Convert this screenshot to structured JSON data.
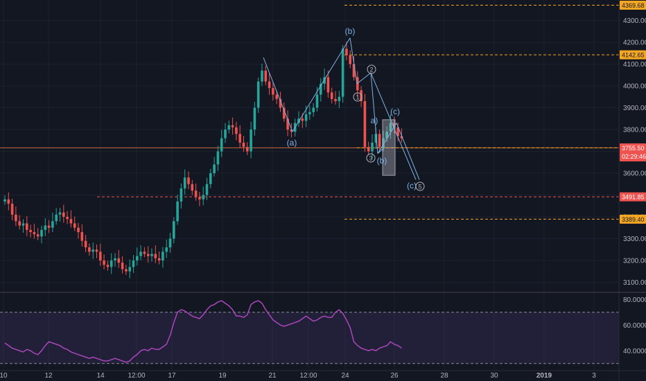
{
  "chart_data": [
    {
      "type": "candlestick",
      "title": "",
      "x_ticks": [
        "10",
        "12",
        "14",
        "12:00",
        "17",
        "19",
        "21",
        "12:00",
        "24",
        "26",
        "28",
        "30",
        "2019",
        "3"
      ],
      "y_ticks": [
        3100,
        3200,
        3300,
        3400,
        3500,
        3600,
        3700,
        3800,
        3900,
        4000,
        4100,
        4200,
        4300
      ],
      "y_tick_labels": [
        "3100.00",
        "3200.00",
        "3300.00",
        "3400.00",
        "3500.00",
        "3600.00",
        "3700.00",
        "3800.00",
        "3900.00",
        "4000.00",
        "4100.00",
        "4200.00",
        "4300.00"
      ],
      "ylim": [
        3050,
        4400
      ],
      "grid": true,
      "colors": {
        "up": "#26a69a",
        "down": "#ef5350",
        "wave": "#7fb2e5",
        "level_orange": "#f5a623",
        "level_red": "#ef5350"
      },
      "closes": [
        3480,
        3460,
        3410,
        3380,
        3360,
        3370,
        3340,
        3330,
        3320,
        3310,
        3340,
        3360,
        3350,
        3380,
        3410,
        3420,
        3400,
        3390,
        3370,
        3350,
        3330,
        3290,
        3260,
        3240,
        3250,
        3240,
        3200,
        3180,
        3170,
        3200,
        3210,
        3190,
        3160,
        3150,
        3170,
        3200,
        3220,
        3240,
        3230,
        3220,
        3230,
        3210,
        3200,
        3240,
        3260,
        3300,
        3380,
        3470,
        3530,
        3580,
        3550,
        3520,
        3490,
        3480,
        3500,
        3550,
        3600,
        3640,
        3700,
        3760,
        3800,
        3820,
        3810,
        3780,
        3740,
        3720,
        3700,
        3800,
        3900,
        4020,
        4070,
        4020,
        3990,
        3960,
        3940,
        3900,
        3850,
        3800,
        3790,
        3830,
        3850,
        3840,
        3870,
        3880,
        3900,
        3960,
        4010,
        4040,
        3970,
        3940,
        3930,
        3950,
        4170,
        4140,
        4100,
        4040,
        3980,
        3930,
        3720,
        3700,
        3740,
        3780,
        3720,
        3760,
        3790,
        3830,
        3810,
        3770,
        3760
      ],
      "start_open": 3470,
      "series": [
        {
          "name": "",
          "type": "line",
          "values": [
            46,
            44,
            42,
            41,
            40,
            39,
            41,
            40,
            38,
            37,
            40,
            44,
            47,
            46,
            45,
            44,
            42,
            41,
            39,
            38,
            37,
            36,
            35,
            34,
            35,
            34,
            33,
            32,
            32,
            33,
            34,
            33,
            32,
            31,
            32,
            35,
            37,
            40,
            41,
            40,
            42,
            41,
            41,
            43,
            45,
            52,
            62,
            70,
            72,
            71,
            69,
            67,
            66,
            65,
            68,
            72,
            75,
            76,
            78,
            79,
            77,
            75,
            72,
            67,
            67,
            66,
            68,
            76,
            78,
            79,
            77,
            72,
            68,
            64,
            62,
            60,
            59,
            60,
            61,
            62,
            63,
            65,
            67,
            65,
            63,
            64,
            66,
            67,
            66,
            66,
            70,
            72,
            69,
            64,
            58,
            47,
            44,
            42,
            41,
            40,
            41,
            40,
            42,
            43,
            44,
            47,
            45,
            44,
            42
          ],
          "ylim": [
            25,
            85
          ],
          "y_tick_labels": [
            "80.0000",
            "60.0000",
            "40.0000"
          ],
          "y_ticks": [
            80,
            60,
            40
          ]
        }
      ]
    }
  ],
  "price_levels": [
    {
      "label": "4369.68",
      "value": 4369.68,
      "color": "#f5a623"
    },
    {
      "label": "4142.65",
      "value": 4142.65,
      "color": "#f5a623"
    },
    {
      "label": "3760.83",
      "value": 3760.83,
      "color": "#f5a623"
    },
    {
      "label": "3491.85",
      "value": 3491.85,
      "color": "#ef5350"
    },
    {
      "label": "3389.40",
      "value": 3389.4,
      "color": "#f5a623"
    }
  ],
  "current_price": {
    "label": "3755.50",
    "countdown": "02:29:46",
    "value": 3755.5
  },
  "wave_labels": [
    {
      "text": "(b)",
      "kind": "letter"
    },
    {
      "text": "(a)",
      "kind": "letter"
    },
    {
      "text": "a)",
      "kind": "letter"
    },
    {
      "text": "(c)",
      "kind": "letter"
    },
    {
      "text": "(b)",
      "kind": "letter"
    },
    {
      "text": "(c)",
      "kind": "letter"
    },
    {
      "text": "1",
      "kind": "circle"
    },
    {
      "text": "2",
      "kind": "circle"
    },
    {
      "text": "3",
      "kind": "circle"
    },
    {
      "text": "5",
      "kind": "circle"
    }
  ]
}
